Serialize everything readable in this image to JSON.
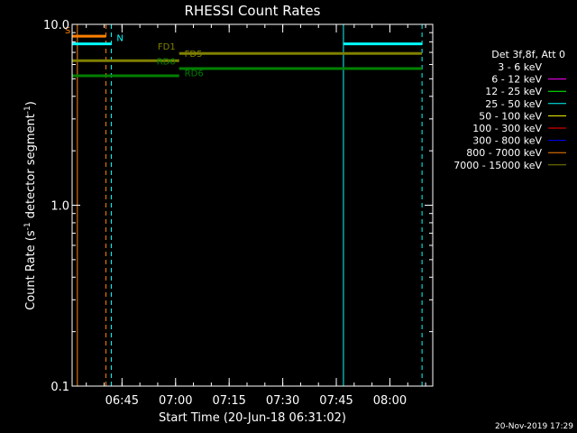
{
  "chart_data": {
    "type": "line",
    "title": "RHESSI Count Rates",
    "xlabel": "Start Time (20-Jun-18 06:31:02)",
    "ylabel_parts": [
      "Count Rate (s",
      "-1",
      " detector segment",
      "-1",
      ")"
    ],
    "y_scale": "log",
    "ylim": [
      0.1,
      10.0
    ],
    "xlim": [
      "06:31:02",
      "08:12:00"
    ],
    "x_ticks": [
      "06:45",
      "07:00",
      "07:15",
      "07:30",
      "07:45",
      "08:00"
    ],
    "y_ticks": [
      "0.1",
      "1.0",
      "10.0"
    ],
    "legend": {
      "title": "Det 3f,8f, Att 0",
      "placement": "right",
      "entries": [
        {
          "label": "3 - 6 keV",
          "color": "#000000"
        },
        {
          "label": "6 - 12 keV",
          "color": "#ff00ff"
        },
        {
          "label": "12 - 25 keV",
          "color": "#00ff00"
        },
        {
          "label": "25 - 50 keV",
          "color": "#00ffff"
        },
        {
          "label": "50 - 100 keV",
          "color": "#ffff00"
        },
        {
          "label": "100 - 300 keV",
          "color": "#ff0000"
        },
        {
          "label": "300 - 800 keV",
          "color": "#0000ff"
        },
        {
          "label": "800 - 7000 keV",
          "color": "#ff8000"
        },
        {
          "label": "7000 - 15000 keV",
          "color": "#808000"
        }
      ]
    },
    "segments": [
      {
        "name": "S",
        "color": "#ff8000",
        "start": "06:31:05",
        "end": "06:40:30",
        "y": 8.6
      },
      {
        "name": "N",
        "color": "#00ffff",
        "start": "06:31:02",
        "end": "06:42:00",
        "y": 7.8
      },
      {
        "name": "N",
        "color": "#00ffff",
        "start": "07:47:00",
        "end": "08:09:00",
        "y": 7.8
      },
      {
        "name": "FD1",
        "color": "#808000",
        "start": "07:01:00",
        "end": "08:09:00",
        "y": 6.9
      },
      {
        "name": "FD5",
        "color": "#808000",
        "start": "06:31:02",
        "end": "07:01:00",
        "y": 6.3
      },
      {
        "name": "RD0",
        "color": "#008000",
        "start": "07:01:00",
        "end": "08:09:00",
        "y": 5.7
      },
      {
        "name": "RD6",
        "color": "#008000",
        "start": "06:31:02",
        "end": "07:01:00",
        "y": 5.2
      }
    ],
    "segment_labels": [
      {
        "text": "S",
        "color": "#ff8000",
        "at": "06:31:05",
        "y": 8.6,
        "anchor": "end"
      },
      {
        "text": "N",
        "color": "#00ffff",
        "at": "06:43:00",
        "y": 7.8,
        "anchor": "start"
      },
      {
        "text": "FD1",
        "color": "#808000",
        "at": "07:00:30",
        "y": 7.0,
        "anchor": "end"
      },
      {
        "text": "FD5",
        "color": "#808000",
        "at": "07:02:00",
        "y": 6.4,
        "anchor": "start"
      },
      {
        "text": "RD0",
        "color": "#008000",
        "at": "07:00:30",
        "y": 5.8,
        "anchor": "end"
      },
      {
        "text": "RD6",
        "color": "#008000",
        "at": "07:02:00",
        "y": 5.0,
        "anchor": "start"
      }
    ],
    "vertical_lines": [
      {
        "time": "06:31:02",
        "color": "#00ffff",
        "style": "solid"
      },
      {
        "time": "06:32:30",
        "color": "#ff8000",
        "style": "solid"
      },
      {
        "time": "06:40:30",
        "color": "#ff8000",
        "style": "dashed"
      },
      {
        "time": "06:42:00",
        "color": "#00ffff",
        "style": "dashed"
      },
      {
        "time": "07:47:00",
        "color": "#00ffff",
        "style": "solid"
      },
      {
        "time": "08:09:00",
        "color": "#00ffff",
        "style": "dashed"
      }
    ]
  },
  "footer": {
    "timestamp": "20-Nov-2019 17:29"
  }
}
